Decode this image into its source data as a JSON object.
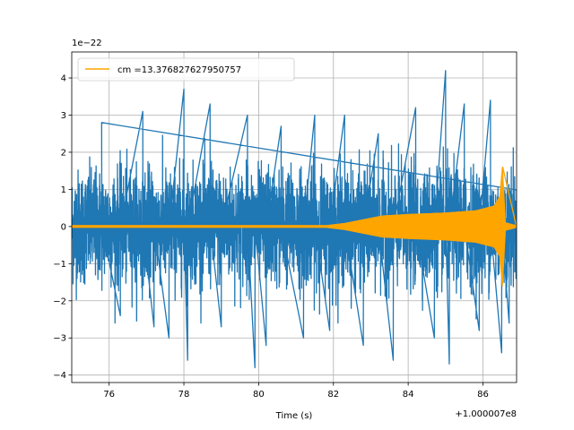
{
  "chart_data": {
    "type": "line",
    "title": "",
    "xlabel": "Time (s)",
    "ylabel": "",
    "x_offset_label": "+1.000007e8",
    "y_scale_label": "1e−22",
    "xlim": [
      75.0,
      86.9
    ],
    "ylim": [
      -4.2,
      4.7
    ],
    "x_ticks": [
      76,
      78,
      80,
      82,
      84,
      86
    ],
    "x_tick_labels": [
      "76",
      "78",
      "80",
      "82",
      "84",
      "86"
    ],
    "y_ticks": [
      -4,
      -3,
      -2,
      -1,
      0,
      1,
      2,
      3,
      4
    ],
    "y_tick_labels": [
      "−4",
      "−3",
      "−2",
      "−1",
      "0",
      "1",
      "2",
      "3",
      "4"
    ],
    "grid": true,
    "legend_position": "top-left",
    "series": [
      {
        "name": "",
        "color": "#1f77b4",
        "kind": "noise",
        "sigma": 0.75,
        "peaks": [
          {
            "x": 75.8,
            "y": 2.8
          },
          {
            "x": 76.3,
            "y": -2.4
          },
          {
            "x": 76.9,
            "y": 3.1
          },
          {
            "x": 77.2,
            "y": -2.7
          },
          {
            "x": 77.6,
            "y": -3.0
          },
          {
            "x": 78.0,
            "y": 3.7
          },
          {
            "x": 78.1,
            "y": -3.6
          },
          {
            "x": 78.7,
            "y": 3.3
          },
          {
            "x": 79.0,
            "y": -2.7
          },
          {
            "x": 79.7,
            "y": 3.0
          },
          {
            "x": 79.9,
            "y": -3.8
          },
          {
            "x": 80.2,
            "y": -3.2
          },
          {
            "x": 80.6,
            "y": 2.7
          },
          {
            "x": 81.2,
            "y": -3.0
          },
          {
            "x": 81.5,
            "y": 3.0
          },
          {
            "x": 81.9,
            "y": -2.8
          },
          {
            "x": 82.3,
            "y": 3.0
          },
          {
            "x": 82.8,
            "y": -3.2
          },
          {
            "x": 83.2,
            "y": 2.5
          },
          {
            "x": 83.6,
            "y": -3.6
          },
          {
            "x": 84.2,
            "y": 3.2
          },
          {
            "x": 84.7,
            "y": -3.0
          },
          {
            "x": 85.0,
            "y": 4.2
          },
          {
            "x": 85.1,
            "y": -3.7
          },
          {
            "x": 85.5,
            "y": 3.3
          },
          {
            "x": 85.9,
            "y": -2.8
          },
          {
            "x": 86.2,
            "y": 3.4
          },
          {
            "x": 86.5,
            "y": -3.4
          },
          {
            "x": 86.7,
            "y": -2.6
          }
        ]
      },
      {
        "name": "cm =13.376827627950757",
        "color": "#ffa500",
        "kind": "chirp",
        "envelope": [
          {
            "x": 75.0,
            "y": 0.02
          },
          {
            "x": 81.8,
            "y": 0.02
          },
          {
            "x": 82.3,
            "y": 0.08
          },
          {
            "x": 82.8,
            "y": 0.18
          },
          {
            "x": 83.3,
            "y": 0.28
          },
          {
            "x": 84.0,
            "y": 0.32
          },
          {
            "x": 85.0,
            "y": 0.36
          },
          {
            "x": 85.8,
            "y": 0.42
          },
          {
            "x": 86.3,
            "y": 0.55
          },
          {
            "x": 86.45,
            "y": 0.8
          },
          {
            "x": 86.52,
            "y": 1.6
          },
          {
            "x": 86.6,
            "y": 0.1
          },
          {
            "x": 86.9,
            "y": 0.02
          }
        ],
        "merger_peak": {
          "x": 86.53,
          "y_max": 1.6,
          "y_min": -1.2
        }
      }
    ]
  }
}
